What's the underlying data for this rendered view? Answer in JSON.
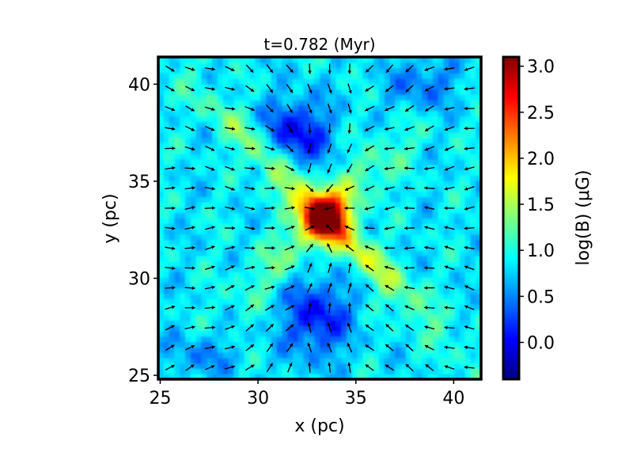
{
  "chart_data": {
    "type": "heatmap",
    "title": "t=0.782 (Myr)",
    "xlabel": "x (pc)",
    "ylabel": "y (pc)",
    "xlim": [
      24.9,
      41.4
    ],
    "ylim": [
      24.8,
      41.4
    ],
    "x_ticks": [
      25,
      30,
      35,
      40
    ],
    "y_ticks": [
      25,
      30,
      35,
      40
    ],
    "grid": false,
    "legend": "none",
    "overlay": "vector arrows (magnetic field direction)",
    "colorbar": {
      "label": "log(B) (μG)",
      "range": [
        -0.4,
        3.1
      ],
      "ticks": [
        0.0,
        0.5,
        1.0,
        1.5,
        2.0,
        2.5,
        3.0
      ],
      "tick_labels": [
        "0.0",
        "0.5",
        "1.0",
        "1.5",
        "2.0",
        "2.5",
        "3.0"
      ],
      "colormap": "jet"
    },
    "field_features": {
      "background_level": 0.85,
      "central_peak": {
        "x": 33.4,
        "y": 33.2,
        "value": 3.0
      },
      "filament_level": 1.9,
      "low_field_level": 0.05
    }
  },
  "colors": {
    "axis": "#000000",
    "arrow": "#000000",
    "jet": [
      "#00007f",
      "#0000ff",
      "#007fff",
      "#00ffff",
      "#7fff7f",
      "#ffff00",
      "#ff7f00",
      "#ff0000",
      "#7f0000"
    ]
  }
}
